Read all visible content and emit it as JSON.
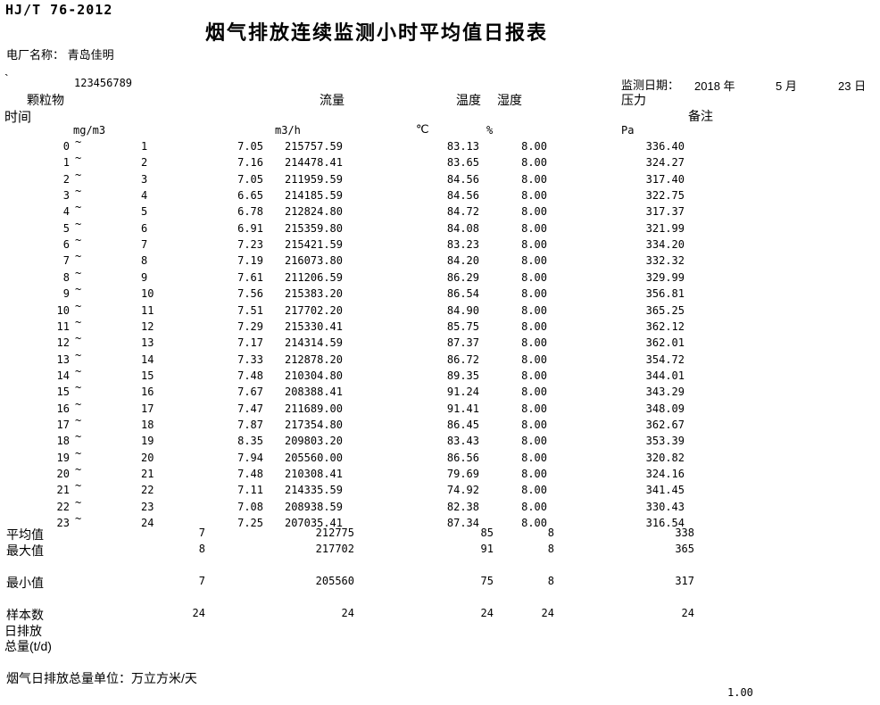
{
  "document": {
    "standard_code": "HJ/T 76-2012",
    "title": "烟气排放连续监测小时平均值日报表",
    "plant_label": "电厂名称：",
    "plant_name": "青岛佳明",
    "mark": "`",
    "serial_number": "123456789",
    "date_label": "监测日期：",
    "date_year": "2018 年",
    "date_month": "5 月",
    "date_day": "23 日"
  },
  "table": {
    "time_header": "时间",
    "col_particulate": "颗粒物",
    "col_flow": "流量",
    "col_temperature": "温度",
    "col_humidity": "湿度",
    "col_pressure": "压力",
    "col_remark": "备注",
    "unit_particulate": "mg/m3",
    "unit_flow": "m3/h",
    "unit_temperature": "℃",
    "unit_humidity": "%",
    "unit_pressure": "Pa",
    "tilde": "~"
  },
  "rows": [
    {
      "s": "0",
      "e": "1",
      "dust": "7.05",
      "flow": "215757.59",
      "temp": "83.13",
      "hum": "8.00",
      "pres": "336.40"
    },
    {
      "s": "1",
      "e": "2",
      "dust": "7.16",
      "flow": "214478.41",
      "temp": "83.65",
      "hum": "8.00",
      "pres": "324.27"
    },
    {
      "s": "2",
      "e": "3",
      "dust": "7.05",
      "flow": "211959.59",
      "temp": "84.56",
      "hum": "8.00",
      "pres": "317.40"
    },
    {
      "s": "3",
      "e": "4",
      "dust": "6.65",
      "flow": "214185.59",
      "temp": "84.56",
      "hum": "8.00",
      "pres": "322.75"
    },
    {
      "s": "4",
      "e": "5",
      "dust": "6.78",
      "flow": "212824.80",
      "temp": "84.72",
      "hum": "8.00",
      "pres": "317.37"
    },
    {
      "s": "5",
      "e": "6",
      "dust": "6.91",
      "flow": "215359.80",
      "temp": "84.08",
      "hum": "8.00",
      "pres": "321.99"
    },
    {
      "s": "6",
      "e": "7",
      "dust": "7.23",
      "flow": "215421.59",
      "temp": "83.23",
      "hum": "8.00",
      "pres": "334.20"
    },
    {
      "s": "7",
      "e": "8",
      "dust": "7.19",
      "flow": "216073.80",
      "temp": "84.20",
      "hum": "8.00",
      "pres": "332.32"
    },
    {
      "s": "8",
      "e": "9",
      "dust": "7.61",
      "flow": "211206.59",
      "temp": "86.29",
      "hum": "8.00",
      "pres": "329.99"
    },
    {
      "s": "9",
      "e": "10",
      "dust": "7.56",
      "flow": "215383.20",
      "temp": "86.54",
      "hum": "8.00",
      "pres": "356.81"
    },
    {
      "s": "10",
      "e": "11",
      "dust": "7.51",
      "flow": "217702.20",
      "temp": "84.90",
      "hum": "8.00",
      "pres": "365.25"
    },
    {
      "s": "11",
      "e": "12",
      "dust": "7.29",
      "flow": "215330.41",
      "temp": "85.75",
      "hum": "8.00",
      "pres": "362.12"
    },
    {
      "s": "12",
      "e": "13",
      "dust": "7.17",
      "flow": "214314.59",
      "temp": "87.37",
      "hum": "8.00",
      "pres": "362.01"
    },
    {
      "s": "13",
      "e": "14",
      "dust": "7.33",
      "flow": "212878.20",
      "temp": "86.72",
      "hum": "8.00",
      "pres": "354.72"
    },
    {
      "s": "14",
      "e": "15",
      "dust": "7.48",
      "flow": "210304.80",
      "temp": "89.35",
      "hum": "8.00",
      "pres": "344.01"
    },
    {
      "s": "15",
      "e": "16",
      "dust": "7.67",
      "flow": "208388.41",
      "temp": "91.24",
      "hum": "8.00",
      "pres": "343.29"
    },
    {
      "s": "16",
      "e": "17",
      "dust": "7.47",
      "flow": "211689.00",
      "temp": "91.41",
      "hum": "8.00",
      "pres": "348.09"
    },
    {
      "s": "17",
      "e": "18",
      "dust": "7.87",
      "flow": "217354.80",
      "temp": "86.45",
      "hum": "8.00",
      "pres": "362.67"
    },
    {
      "s": "18",
      "e": "19",
      "dust": "8.35",
      "flow": "209803.20",
      "temp": "83.43",
      "hum": "8.00",
      "pres": "353.39"
    },
    {
      "s": "19",
      "e": "20",
      "dust": "7.94",
      "flow": "205560.00",
      "temp": "86.56",
      "hum": "8.00",
      "pres": "320.82"
    },
    {
      "s": "20",
      "e": "21",
      "dust": "7.48",
      "flow": "210308.41",
      "temp": "79.69",
      "hum": "8.00",
      "pres": "324.16"
    },
    {
      "s": "21",
      "e": "22",
      "dust": "7.11",
      "flow": "214335.59",
      "temp": "74.92",
      "hum": "8.00",
      "pres": "341.45"
    },
    {
      "s": "22",
      "e": "23",
      "dust": "7.08",
      "flow": "208938.59",
      "temp": "82.38",
      "hum": "8.00",
      "pres": "330.43"
    },
    {
      "s": "23",
      "e": "24",
      "dust": "7.25",
      "flow": "207035.41",
      "temp": "87.34",
      "hum": "8.00",
      "pres": "316.54"
    }
  ],
  "summary": [
    {
      "label": "平均值",
      "dust": "7",
      "flow": "212775",
      "temp": "85",
      "hum": "8",
      "pres": "338"
    },
    {
      "label": "最大值",
      "dust": "8",
      "flow": "217702",
      "temp": "91",
      "hum": "8",
      "pres": "365"
    },
    {
      "label": "最小值",
      "dust": "7",
      "flow": "205560",
      "temp": "75",
      "hum": "8",
      "pres": "317"
    },
    {
      "label": "样本数",
      "dust": "24",
      "flow": "24",
      "temp": "24",
      "hum": "24",
      "pres": "24"
    }
  ],
  "footer": {
    "daily_emission_label": "日排放",
    "daily_total_label": "总量(t/d)",
    "unit_note": "烟气日排放总量单位：万立方米/天",
    "page_value": "1.00"
  }
}
